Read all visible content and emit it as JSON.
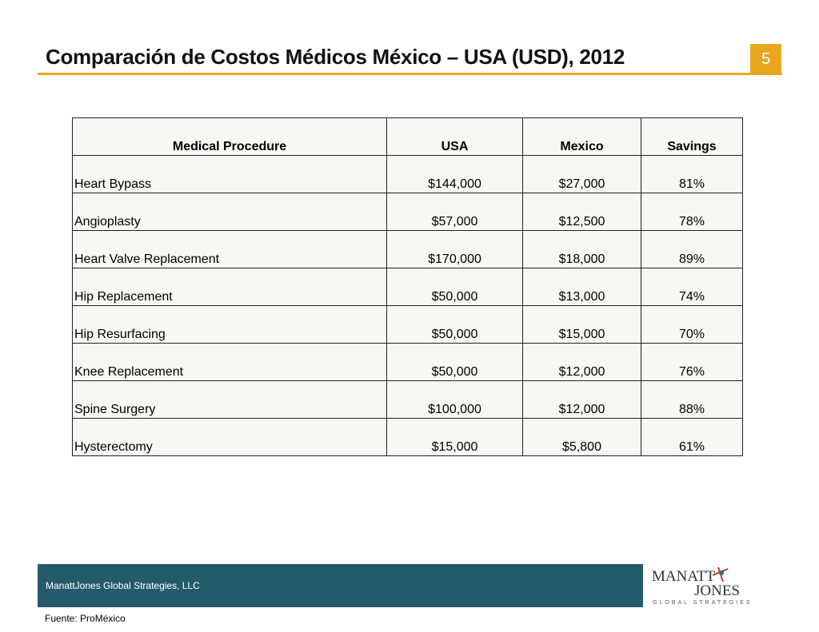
{
  "header": {
    "title": "Comparación de Costos Médicos México – USA (USD), 2012",
    "page_number": "5"
  },
  "table": {
    "columns": [
      "Medical Procedure",
      "USA",
      "Mexico",
      "Savings"
    ],
    "rows": [
      [
        "Heart Bypass",
        "$144,000",
        "$27,000",
        "81%"
      ],
      [
        "Angioplasty",
        "$57,000",
        "$12,500",
        "78%"
      ],
      [
        "Heart Valve Replacement",
        "$170,000",
        "$18,000",
        "89%"
      ],
      [
        "Hip Replacement",
        "$50,000",
        "$13,000",
        "74%"
      ],
      [
        "Hip Resurfacing",
        "$50,000",
        "$15,000",
        "70%"
      ],
      [
        "Knee Replacement",
        "$50,000",
        "$12,000",
        "76%"
      ],
      [
        "Spine Surgery",
        "$100,000",
        "$12,000",
        "88%"
      ],
      [
        "Hysterectomy",
        "$15,000",
        "$5,800",
        "61%"
      ]
    ]
  },
  "footer": {
    "company": "ManattJones Global Strategies, LLC",
    "source": "Fuente: ProMéxico",
    "logo": {
      "line1": "MANATT",
      "line2": "JONES",
      "tagline": "GLOBAL STRATEGIES"
    }
  }
}
